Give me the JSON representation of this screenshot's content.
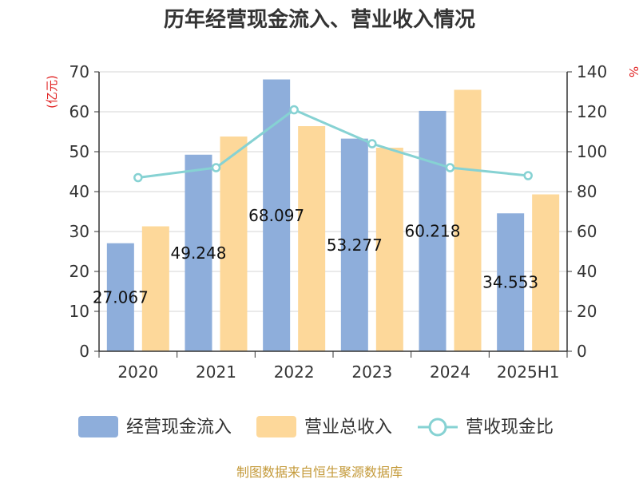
{
  "chart_data": {
    "type": "bar",
    "title": "历年经营现金流入、营业收入情况",
    "categories": [
      "2020",
      "2021",
      "2022",
      "2023",
      "2024",
      "2025H1"
    ],
    "series": [
      {
        "name": "经营现金流入",
        "type": "bar",
        "axis": "left",
        "color": "#8eaedb",
        "values": [
          27.067,
          49.248,
          68.097,
          53.277,
          60.218,
          34.553
        ],
        "data_labels": [
          "27.067",
          "49.248",
          "68.097",
          "53.277",
          "60.218",
          "34.553"
        ]
      },
      {
        "name": "营业总收入",
        "type": "bar",
        "axis": "left",
        "color": "#fdd89a",
        "values": [
          31.3,
          53.8,
          56.4,
          51.0,
          65.5,
          39.3
        ]
      },
      {
        "name": "营收现金比",
        "type": "line",
        "axis": "right",
        "color": "#86d2d3",
        "values": [
          87,
          92,
          121,
          104,
          92,
          88
        ]
      }
    ],
    "y_left": {
      "unit": "(亿元)",
      "ylim": [
        0,
        70
      ],
      "ticks": [
        0,
        10,
        20,
        30,
        40,
        50,
        60,
        70
      ],
      "unit_color": "#e02020"
    },
    "y_right": {
      "unit": "%",
      "ylim": [
        0,
        140
      ],
      "ticks": [
        0,
        20,
        40,
        60,
        80,
        100,
        120,
        140
      ],
      "unit_color": "#e02020"
    },
    "grid": true,
    "legend_position": "bottom"
  },
  "source_text": "制图数据来自恒生聚源数据库"
}
